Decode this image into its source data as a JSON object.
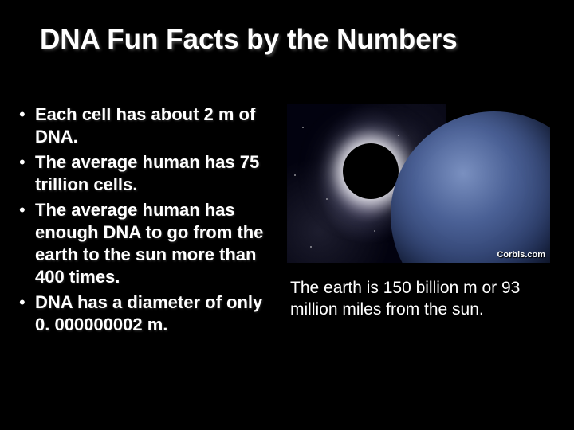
{
  "title": "DNA Fun Facts by the Numbers",
  "bullets": [
    "Each cell has about 2 m of DNA.",
    "The average human has 75 trillion cells.",
    "The average human has enough DNA to go from the earth to the sun more than 400 times.",
    "DNA has a diameter of only 0. 000000002 m."
  ],
  "image": {
    "credit": "Corbis.com",
    "colors": {
      "background": "#000000",
      "galaxy_haze": "#c8bedc",
      "eclipse_glow": "#ffffff",
      "planet_highlight": "#7a90c0",
      "planet_mid": "#4a6095",
      "planet_shadow": "#0a1230"
    }
  },
  "caption": "The earth is 150 billion m or 93 million miles from the sun.",
  "style": {
    "slide_background": "#000000",
    "text_color": "#ffffff",
    "title_fontsize": 35,
    "bullet_fontsize": 22,
    "caption_fontsize": 21,
    "bullet_glyph": "•"
  }
}
